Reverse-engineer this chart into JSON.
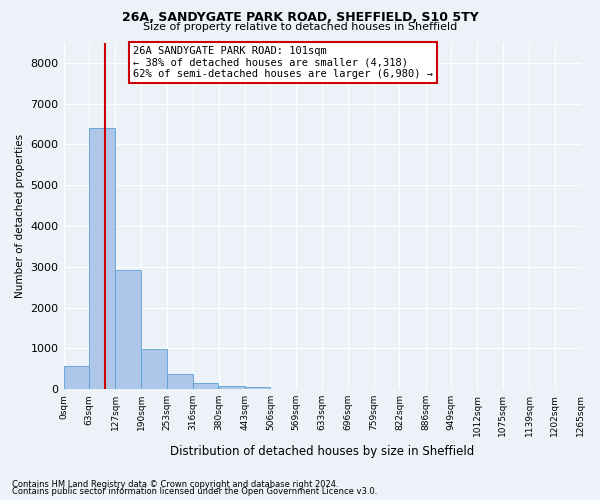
{
  "title1": "26A, SANDYGATE PARK ROAD, SHEFFIELD, S10 5TY",
  "title2": "Size of property relative to detached houses in Sheffield",
  "xlabel": "Distribution of detached houses by size in Sheffield",
  "ylabel": "Number of detached properties",
  "annotation_line1": "26A SANDYGATE PARK ROAD: 101sqm",
  "annotation_line2": "← 38% of detached houses are smaller (4,318)",
  "annotation_line3": "62% of semi-detached houses are larger (6,980) →",
  "property_size": 101,
  "bin_edges": [
    0,
    63,
    127,
    190,
    253,
    316,
    380,
    443,
    506,
    569,
    633,
    696,
    759,
    822,
    886,
    949,
    1012,
    1075,
    1139,
    1202,
    1265
  ],
  "bin_labels": [
    "0sqm",
    "63sqm",
    "127sqm",
    "190sqm",
    "253sqm",
    "316sqm",
    "380sqm",
    "443sqm",
    "506sqm",
    "569sqm",
    "633sqm",
    "696sqm",
    "759sqm",
    "822sqm",
    "886sqm",
    "949sqm",
    "1012sqm",
    "1075sqm",
    "1139sqm",
    "1202sqm",
    "1265sqm"
  ],
  "bar_values": [
    580,
    6400,
    2920,
    980,
    360,
    160,
    90,
    60,
    0,
    0,
    0,
    0,
    0,
    0,
    0,
    0,
    0,
    0,
    0,
    0
  ],
  "bar_color": "#aec6e8",
  "bar_edge_color": "#5a9fd4",
  "vline_x": 101,
  "vline_color": "#cc0000",
  "ylim_max": 8500,
  "yticks": [
    0,
    1000,
    2000,
    3000,
    4000,
    5000,
    6000,
    7000,
    8000
  ],
  "bg_color": "#edf2f8",
  "grid_color": "#ffffff",
  "annotation_box_color": "#cc0000",
  "footnote1": "Contains HM Land Registry data © Crown copyright and database right 2024.",
  "footnote2": "Contains public sector information licensed under the Open Government Licence v3.0."
}
